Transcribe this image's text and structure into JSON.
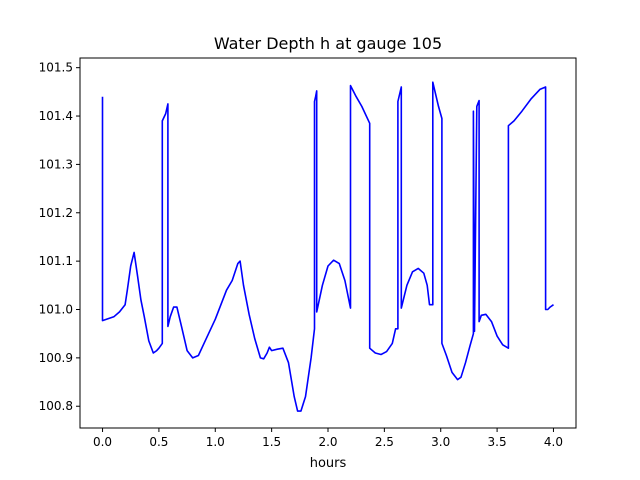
{
  "chart_data": {
    "type": "line",
    "title": "Water Depth h at gauge 105",
    "xlabel": "hours",
    "ylabel": "",
    "xlim": [
      -0.2,
      4.2
    ],
    "ylim": [
      100.755,
      101.52
    ],
    "xticks": [
      0.0,
      0.5,
      1.0,
      1.5,
      2.0,
      2.5,
      3.0,
      3.5,
      4.0
    ],
    "xtick_labels": [
      "0.0",
      "0.5",
      "1.0",
      "1.5",
      "2.0",
      "2.5",
      "3.0",
      "3.5",
      "4.0"
    ],
    "yticks": [
      100.8,
      100.9,
      101.0,
      101.1,
      101.2,
      101.3,
      101.4,
      101.5
    ],
    "ytick_labels": [
      "100.8",
      "100.9",
      "101.0",
      "101.1",
      "101.2",
      "101.3",
      "101.4",
      "101.5"
    ],
    "grid": false,
    "series": [
      {
        "color": "#0000ff",
        "x": [
          0.0,
          0.0,
          0.1,
          0.15,
          0.2,
          0.22,
          0.25,
          0.28,
          0.31,
          0.34,
          0.37,
          0.41,
          0.45,
          0.48,
          0.5,
          0.53,
          0.53,
          0.56,
          0.58,
          0.58,
          0.6,
          0.63,
          0.66,
          0.7,
          0.75,
          0.8,
          0.85,
          0.9,
          1.0,
          1.1,
          1.15,
          1.2,
          1.22,
          1.25,
          1.3,
          1.35,
          1.4,
          1.43,
          1.46,
          1.48,
          1.5,
          1.55,
          1.6,
          1.65,
          1.7,
          1.73,
          1.76,
          1.8,
          1.85,
          1.88,
          1.88,
          1.89,
          1.9,
          1.9,
          1.95,
          2.0,
          2.05,
          2.1,
          2.15,
          2.2,
          2.2,
          2.25,
          2.3,
          2.37,
          2.37,
          2.42,
          2.47,
          2.52,
          2.57,
          2.6,
          2.62,
          2.62,
          2.65,
          2.65,
          2.7,
          2.75,
          2.8,
          2.85,
          2.88,
          2.9,
          2.93,
          2.93,
          2.98,
          3.01,
          3.01,
          3.05,
          3.1,
          3.15,
          3.18,
          3.22,
          3.26,
          3.29,
          3.29,
          3.3,
          3.3,
          3.32,
          3.34,
          3.34,
          3.36,
          3.4,
          3.45,
          3.5,
          3.55,
          3.6,
          3.6,
          3.65,
          3.72,
          3.8,
          3.88,
          3.93,
          3.93,
          3.95,
          3.97,
          4.0
        ],
        "y": [
          101.44,
          100.977,
          100.985,
          100.995,
          101.01,
          101.04,
          101.09,
          101.118,
          101.07,
          101.02,
          100.985,
          100.935,
          100.91,
          100.915,
          100.92,
          100.93,
          101.39,
          101.405,
          101.425,
          100.965,
          100.985,
          101.005,
          101.005,
          100.965,
          100.915,
          100.9,
          100.905,
          100.93,
          100.98,
          101.04,
          101.06,
          101.095,
          101.1,
          101.05,
          100.99,
          100.94,
          100.9,
          100.898,
          100.91,
          100.922,
          100.915,
          100.918,
          100.92,
          100.89,
          100.82,
          100.79,
          100.79,
          100.82,
          100.9,
          100.96,
          101.43,
          101.44,
          101.452,
          100.995,
          101.05,
          101.09,
          101.102,
          101.095,
          101.06,
          101.003,
          101.463,
          101.44,
          101.42,
          101.385,
          100.92,
          100.91,
          100.907,
          100.913,
          100.93,
          100.96,
          100.96,
          101.43,
          101.46,
          101.003,
          101.05,
          101.078,
          101.085,
          101.075,
          101.05,
          101.01,
          101.01,
          101.47,
          101.42,
          101.395,
          100.93,
          100.905,
          100.87,
          100.855,
          100.86,
          100.89,
          100.925,
          100.95,
          101.41,
          100.955,
          100.96,
          101.42,
          101.432,
          100.975,
          100.988,
          100.99,
          100.975,
          100.945,
          100.927,
          100.92,
          101.38,
          101.39,
          101.41,
          101.435,
          101.455,
          101.46,
          101.0,
          101.0,
          101.005,
          101.01
        ]
      }
    ]
  }
}
